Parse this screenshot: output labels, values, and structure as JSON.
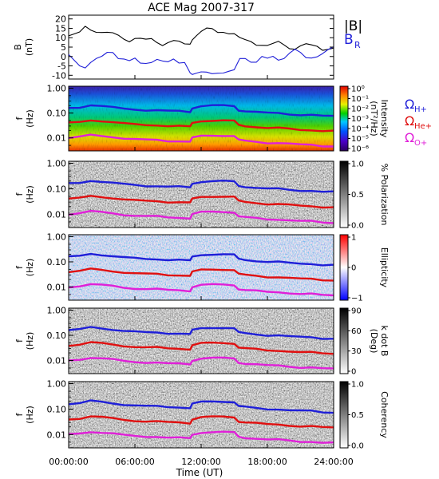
{
  "chart_data": {
    "type": "heatmap",
    "title": "ACE Mag 2007-317",
    "xlabel": "Time (UT)",
    "x_ticks": [
      "00:00:00",
      "06:00:00",
      "12:00:00",
      "18:00:00",
      "24:00:00"
    ],
    "x_range_hours": [
      0,
      24
    ],
    "top_panel": {
      "type": "line",
      "ylabel_line1": "B",
      "ylabel_line2": "(nT)",
      "ylim": [
        -12,
        22
      ],
      "yticks": [
        "20",
        "15",
        "10",
        "5",
        "0",
        "-5",
        "-10"
      ],
      "legend": {
        "total": "|B|",
        "radial": "B",
        "radial_sub": "R"
      },
      "series": [
        {
          "label": "|B|",
          "color": "#000000",
          "x": [
            0,
            0.5,
            1,
            1.5,
            2,
            2.5,
            3,
            3.5,
            4,
            4.5,
            5,
            5.5,
            6,
            6.5,
            7,
            7.5,
            8,
            8.5,
            9,
            9.5,
            10,
            10.5,
            11,
            11.2,
            11.6,
            12,
            12.5,
            13,
            13.5,
            14,
            14.5,
            15,
            15.5,
            16,
            16.5,
            17,
            17.5,
            18,
            18.5,
            19,
            19.5,
            20,
            20.5,
            21,
            21.5,
            22,
            22.5,
            23,
            23.5,
            24
          ],
          "y": [
            11,
            11,
            12,
            16,
            15,
            14,
            13,
            12,
            11.5,
            11,
            10,
            9,
            10,
            9,
            8,
            9,
            8,
            7,
            8,
            8,
            7,
            6,
            7,
            10,
            12,
            13,
            14,
            14,
            13,
            14,
            13,
            12,
            9,
            8,
            8,
            7,
            7,
            6,
            6,
            7,
            6,
            5,
            5,
            6,
            6,
            5,
            5,
            4,
            5,
            5
          ]
        },
        {
          "label": "B_R",
          "color": "#1f1fd8",
          "x": [
            0,
            0.5,
            1,
            1.5,
            2,
            2.5,
            3,
            3.5,
            4,
            4.5,
            5,
            5.5,
            6,
            6.5,
            7,
            7.5,
            8,
            8.5,
            9,
            9.5,
            10,
            10.5,
            11,
            11.2,
            11.6,
            12,
            12.5,
            13,
            13.5,
            14,
            14.5,
            15,
            15.5,
            16,
            16.5,
            17,
            17.5,
            18,
            18.5,
            19,
            19.5,
            20,
            20.5,
            21,
            21.5,
            22,
            22.5,
            23,
            23.5,
            24
          ],
          "y": [
            0,
            -2,
            -4,
            -5,
            -3,
            -2,
            -1,
            2,
            3,
            0,
            -1,
            -3,
            -2,
            -4,
            -3,
            -2,
            -1,
            -3,
            -4,
            -2,
            -3,
            -2,
            -8,
            -10,
            -10,
            -9,
            -8,
            -8,
            -8,
            -9,
            -9,
            -8,
            -1,
            0,
            -2,
            -3,
            -1,
            -2,
            0,
            -1,
            0,
            2,
            3,
            1,
            -1,
            0,
            1,
            2,
            3,
            4
          ]
        }
      ]
    },
    "freq_panels": {
      "ylabel_line1": "f",
      "ylabel_line2": "(Hz)",
      "yticks": [
        "1.00",
        "0.10",
        "0.01"
      ],
      "ylim_hz": [
        0.003,
        1.2
      ],
      "yscale": "log",
      "curves": [
        {
          "name": "Ω_H+",
          "color": "#1f1fd8",
          "x": [
            0,
            1,
            2,
            3,
            4,
            5,
            6,
            7,
            8,
            9,
            10,
            11,
            11.2,
            12,
            13,
            14,
            15,
            15.4,
            16,
            17,
            18,
            19,
            20,
            21,
            22,
            23,
            24
          ],
          "y": [
            0.16,
            0.17,
            0.21,
            0.19,
            0.17,
            0.15,
            0.14,
            0.13,
            0.13,
            0.12,
            0.12,
            0.11,
            0.16,
            0.19,
            0.2,
            0.2,
            0.19,
            0.13,
            0.12,
            0.11,
            0.1,
            0.1,
            0.09,
            0.085,
            0.085,
            0.075,
            0.075
          ]
        },
        {
          "name": "Ω_He+",
          "color": "#e01010",
          "x": [
            0,
            1,
            2,
            3,
            4,
            5,
            6,
            7,
            8,
            9,
            10,
            11,
            11.2,
            12,
            13,
            14,
            15,
            15.4,
            16,
            17,
            18,
            19,
            20,
            21,
            22,
            23,
            24
          ],
          "y": [
            0.04,
            0.043,
            0.052,
            0.048,
            0.043,
            0.038,
            0.035,
            0.033,
            0.033,
            0.03,
            0.03,
            0.028,
            0.04,
            0.048,
            0.05,
            0.05,
            0.048,
            0.033,
            0.03,
            0.028,
            0.025,
            0.025,
            0.023,
            0.021,
            0.021,
            0.019,
            0.019
          ]
        },
        {
          "name": "Ω_O+",
          "color": "#e020d8",
          "x": [
            0,
            1,
            2,
            3,
            4,
            5,
            6,
            7,
            8,
            9,
            10,
            11,
            11.2,
            12,
            13,
            14,
            15,
            15.4,
            16,
            17,
            18,
            19,
            20,
            21,
            22,
            23,
            24
          ],
          "y": [
            0.01,
            0.011,
            0.013,
            0.012,
            0.011,
            0.0095,
            0.0088,
            0.0083,
            0.0083,
            0.0075,
            0.0075,
            0.007,
            0.01,
            0.012,
            0.0125,
            0.0125,
            0.012,
            0.0083,
            0.0075,
            0.007,
            0.0063,
            0.0063,
            0.0058,
            0.0053,
            0.0053,
            0.0047,
            0.0047
          ]
        }
      ]
    },
    "spectral_panels": [
      {
        "id": "intensity",
        "colormap": "rainbow",
        "colorbar_label_line1": "Intensity",
        "colorbar_label_line2": "(nT²/Hz)",
        "colorbar_ticks": [
          "10⁰",
          "10⁻¹",
          "10⁻²",
          "10⁻³",
          "10⁻⁴",
          "10⁻⁵",
          "10⁻⁶"
        ],
        "colorbar_range": [
          "1e-6",
          "1e0"
        ],
        "legend": [
          {
            "main": "Ω",
            "sub": "H+",
            "color": "#1f1fd8"
          },
          {
            "main": "Ω",
            "sub": "He+",
            "color": "#e01010"
          },
          {
            "main": "Ω",
            "sub": "O+",
            "color": "#e020d8"
          }
        ]
      },
      {
        "id": "polarization",
        "colormap": "gray",
        "colorbar_label": "% Polarization",
        "colorbar_ticks": [
          "1.0",
          "0.5",
          "0.0"
        ],
        "colorbar_range": [
          0,
          1
        ]
      },
      {
        "id": "ellipticity",
        "colormap": "bwr",
        "colorbar_label": "Ellipticity",
        "colorbar_ticks": [
          "1",
          "0",
          "−1"
        ],
        "colorbar_range": [
          -1,
          1
        ]
      },
      {
        "id": "kdotb",
        "colormap": "gray",
        "colorbar_label_line1": "k dot B",
        "colorbar_label_line2": "(Deg)",
        "colorbar_ticks": [
          "90",
          "60",
          "30",
          "0"
        ],
        "colorbar_range": [
          0,
          90
        ]
      },
      {
        "id": "coherency",
        "colormap": "gray",
        "colorbar_label": "Coherency",
        "colorbar_ticks": [
          "1.0",
          "0.5",
          "0.0"
        ],
        "colorbar_range": [
          0,
          1
        ]
      }
    ]
  }
}
